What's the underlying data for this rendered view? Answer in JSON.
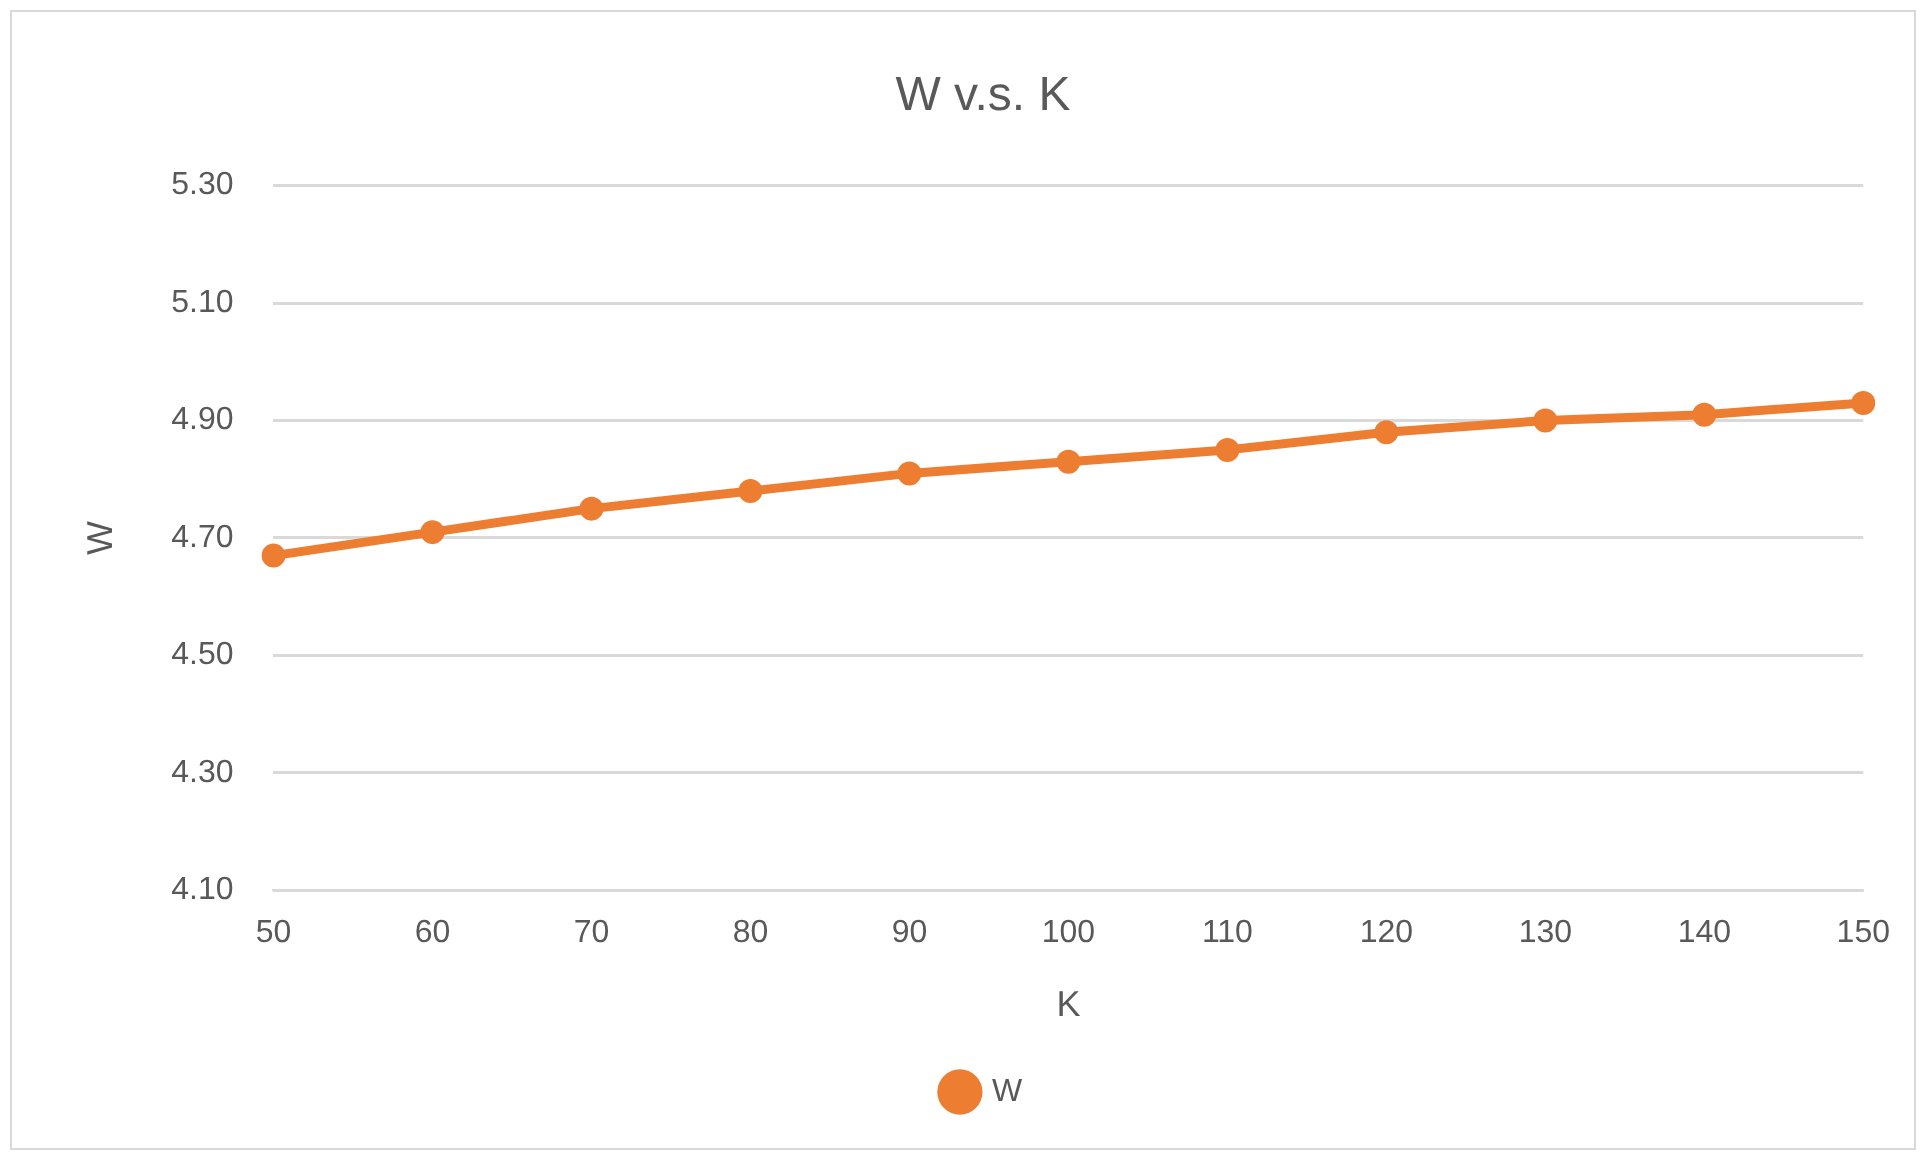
{
  "chart_data": {
    "type": "line",
    "title": "W v.s. K",
    "xlabel": "K",
    "ylabel": "W",
    "categories": [
      "50",
      "60",
      "70",
      "80",
      "90",
      "100",
      "110",
      "120",
      "130",
      "140",
      "150"
    ],
    "series": [
      {
        "name": "W",
        "color": "#ed7d31",
        "values": [
          4.67,
          4.71,
          4.75,
          4.78,
          4.81,
          4.83,
          4.85,
          4.88,
          4.9,
          4.91,
          4.93
        ]
      }
    ],
    "ylim": [
      4.1,
      5.3
    ],
    "yticks": [
      {
        "value": 4.1,
        "label": "4.10"
      },
      {
        "value": 4.3,
        "label": "4.30"
      },
      {
        "value": 4.5,
        "label": "4.50"
      },
      {
        "value": 4.7,
        "label": "4.70"
      },
      {
        "value": 4.9,
        "label": "4.90"
      },
      {
        "value": 5.1,
        "label": "5.10"
      },
      {
        "value": 5.3,
        "label": "5.30"
      }
    ],
    "grid": "y",
    "legend": "bottom",
    "marker": "circle",
    "line_style": "solid"
  }
}
